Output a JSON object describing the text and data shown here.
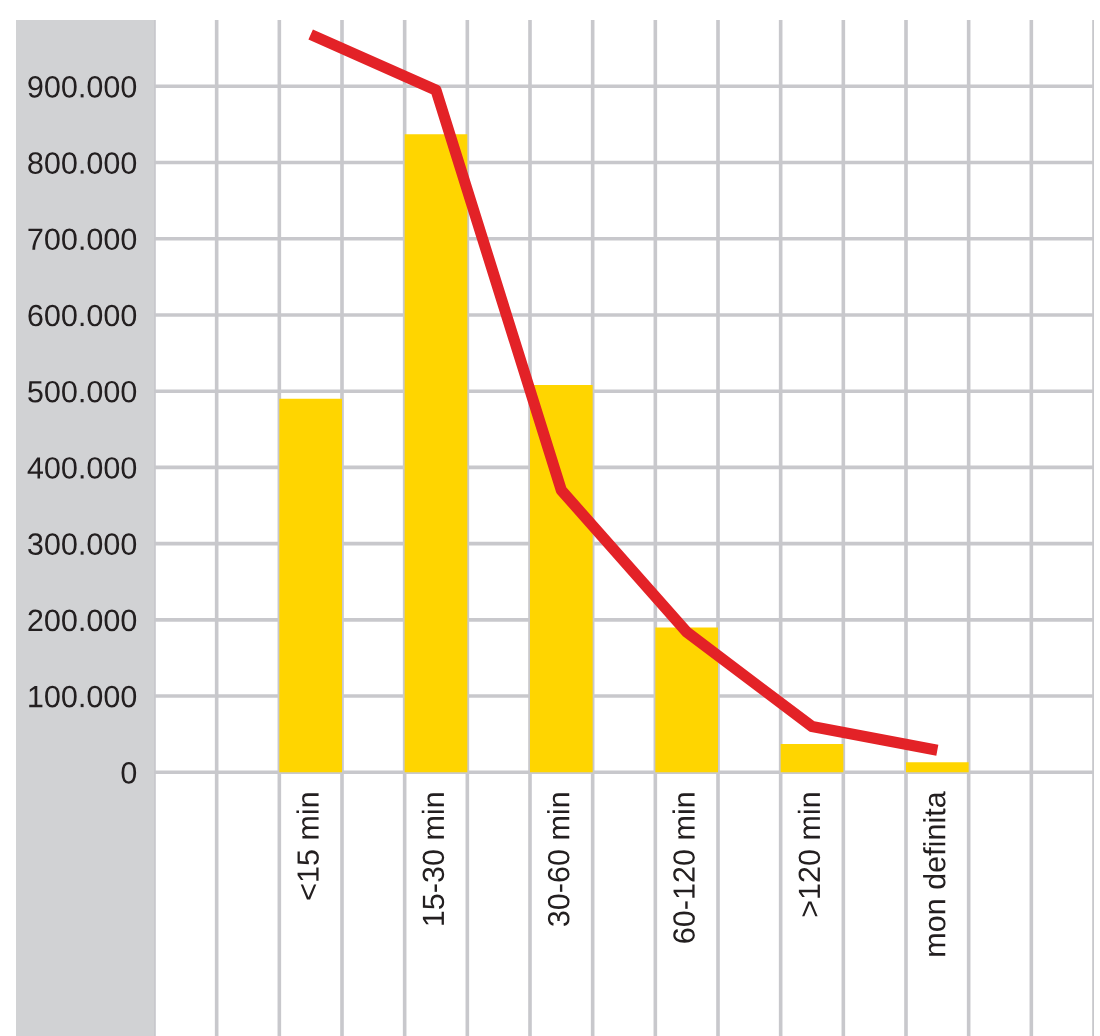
{
  "chart_data": {
    "type": "bar",
    "categories": [
      "<15 min",
      "15-30 min",
      "30-60 min",
      "60-120 min",
      ">120 min",
      "mon definita"
    ],
    "series": [
      {
        "color": "#ffd500",
        "values": [
          490000,
          837000,
          508000,
          190000,
          37000,
          13000
        ]
      },
      {
        "type": "line",
        "color": "#e32227",
        "values": [
          968000,
          895000,
          370000,
          184000,
          60000,
          29000
        ]
      }
    ],
    "ylim": [
      -346000,
      987000
    ],
    "yticks": [
      {
        "value": 0,
        "label": "0"
      },
      {
        "value": 100000,
        "label": "100.000"
      },
      {
        "value": 200000,
        "label": "200.000"
      },
      {
        "value": 300000,
        "label": "300.000"
      },
      {
        "value": 400000,
        "label": "400.000"
      },
      {
        "value": 500000,
        "label": "500.000"
      },
      {
        "value": 600000,
        "label": "600.000"
      },
      {
        "value": 700000,
        "label": "700.000"
      },
      {
        "value": 800000,
        "label": "800.000"
      },
      {
        "value": 900000,
        "label": "900.000"
      }
    ],
    "grid": true
  }
}
